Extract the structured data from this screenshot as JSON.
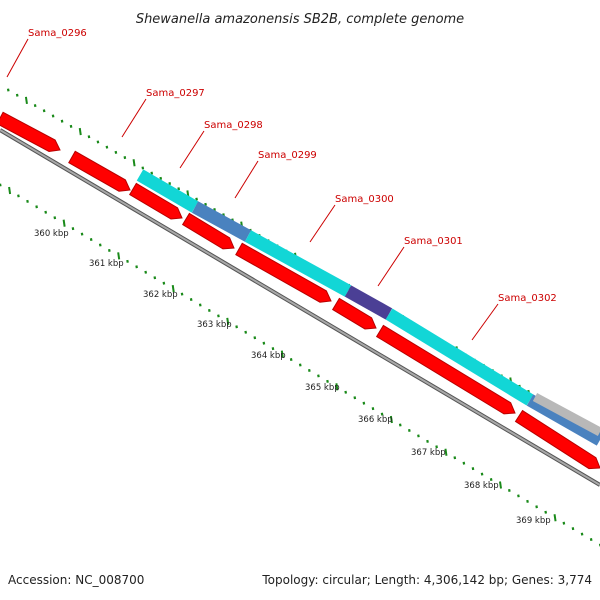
{
  "title": "Shewanella amazonensis SB2B, complete genome",
  "genes": [
    {
      "id": "Sama_0296",
      "label": "Sama_0296"
    },
    {
      "id": "Sama_0297",
      "label": "Sama_0297"
    },
    {
      "id": "Sama_0298",
      "label": "Sama_0298"
    },
    {
      "id": "Sama_0299",
      "label": "Sama_0299"
    },
    {
      "id": "Sama_0300",
      "label": "Sama_0300"
    },
    {
      "id": "Sama_0301",
      "label": "Sama_0301"
    },
    {
      "id": "Sama_0302",
      "label": "Sama_0302"
    }
  ],
  "kbp_ticks": [
    "360 kbp",
    "361 kbp",
    "362 kbp",
    "363 kbp",
    "364 kbp",
    "365 kbp",
    "366 kbp",
    "367 kbp",
    "368 kbp",
    "369 kbp"
  ],
  "footer": {
    "accession": "Accession: NC_008700",
    "summary": "Topology: circular; Length: 4,306,142 bp; Genes: 3,774"
  },
  "colors": {
    "cds_red": "#ff0000",
    "cds_red_dark": "#b80000",
    "cyan": "#12d6d6",
    "steel_blue": "#4a82bf",
    "dark_purple": "#4b3f95",
    "gray": "#b8b8b8",
    "backbone": "#808080",
    "tick_green": "#1a8a1a",
    "label_red": "#cc0000"
  }
}
